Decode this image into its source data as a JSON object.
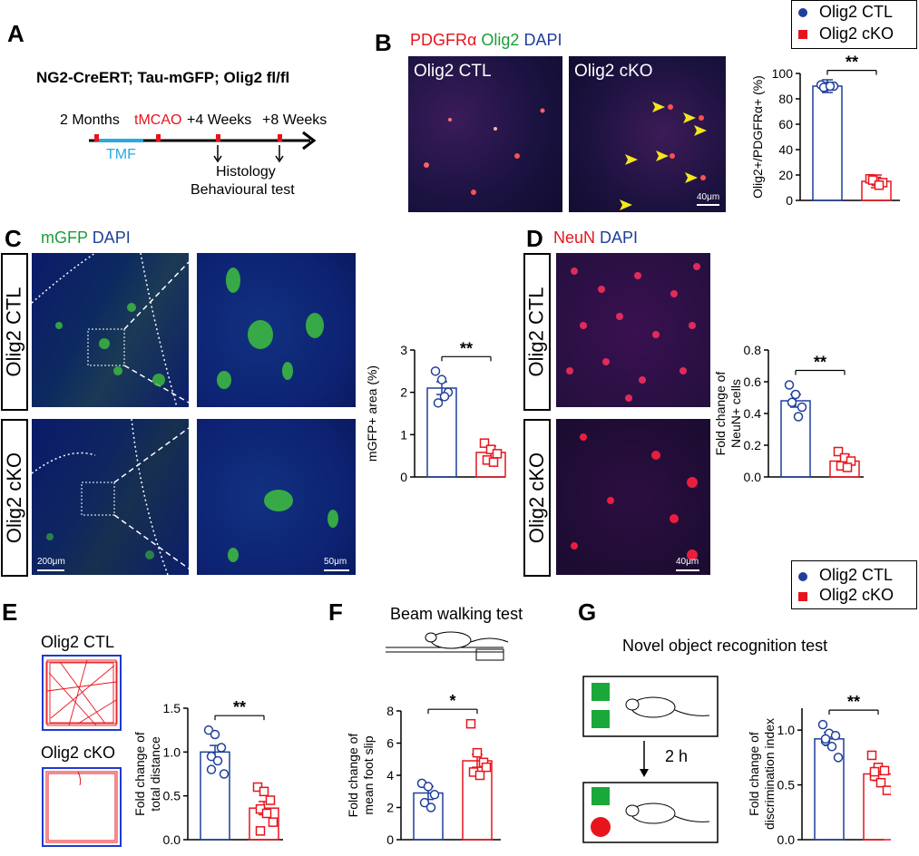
{
  "panels": {
    "A": "A",
    "B": "B",
    "C": "C",
    "D": "D",
    "E": "E",
    "F": "F",
    "G": "G"
  },
  "panel_a": {
    "title": "NG2-CreERT; Tau-mGFP; Olig2 fl/fl",
    "t0": "2 Months",
    "t1": "tMCAO",
    "t2": "+4 Weeks",
    "t3": "+8 Weeks",
    "tmf": "TMF",
    "histology": "Histology",
    "behaviour": "Behavioural test"
  },
  "panel_b": {
    "stain_pdgfra": "PDGFRα",
    "stain_olig2": "Olig2",
    "stain_dapi": "DAPI",
    "img_ctl": "Olig2 CTL",
    "img_cko": "Olig2 cKO",
    "scale": "40μm"
  },
  "panel_c": {
    "stain_mgfp": "mGFP",
    "stain_dapi": "DAPI",
    "scale1": "200μm",
    "scale2": "50μm"
  },
  "panel_d": {
    "stain_neun": "NeuN",
    "stain_dapi": "DAPI",
    "scale": "40μm"
  },
  "row_labels": {
    "ctl": "Olig2 CTL",
    "cko": "Olig2 cKO"
  },
  "legend": {
    "ctl": "Olig2 CTL",
    "cko": "Olig2 cKO",
    "ctl_color": "#1f3f9a",
    "cko_color": "#e8141c"
  },
  "panel_e": {
    "ctl_title": "Olig2 CTL",
    "cko_title": "Olig2 cKO"
  },
  "panel_f": {
    "title": "Beam walking test"
  },
  "panel_g": {
    "title": "Novel object recognition test",
    "delay": "2 h"
  },
  "chart_data": [
    {
      "id": "B",
      "type": "bar",
      "ylabel": "Olig2+/PDGFRα+ (%)",
      "ylim": [
        0,
        100
      ],
      "yticks": [
        "0",
        "20",
        "40",
        "60",
        "80",
        "100"
      ],
      "series": [
        {
          "name": "Olig2 CTL",
          "values": [
            90
          ],
          "points": [
            91,
            90,
            90,
            89,
            90
          ]
        },
        {
          "name": "Olig2 cKO",
          "values": [
            15
          ],
          "points": [
            17,
            15,
            14,
            16,
            12
          ]
        }
      ],
      "significance": "**"
    },
    {
      "id": "C",
      "type": "bar",
      "ylabel": "mGFP+ area (%)",
      "ylim": [
        0,
        3
      ],
      "yticks": [
        "0",
        "1",
        "2",
        "3"
      ],
      "series": [
        {
          "name": "Olig2 CTL",
          "values": [
            2.1
          ],
          "points": [
            2.5,
            2.3,
            2.0,
            1.75,
            1.9
          ]
        },
        {
          "name": "Olig2 cKO",
          "values": [
            0.58
          ],
          "points": [
            0.8,
            0.65,
            0.55,
            0.4,
            0.35
          ]
        }
      ],
      "significance": "**"
    },
    {
      "id": "D",
      "type": "bar",
      "ylabel": "Fold change of NeuN+ cells",
      "ylim": [
        0,
        0.8
      ],
      "yticks": [
        "0.0",
        "0.2",
        "0.4",
        "0.6",
        "0.8"
      ],
      "series": [
        {
          "name": "Olig2 CTL",
          "values": [
            0.48
          ],
          "points": [
            0.58,
            0.52,
            0.44,
            0.47,
            0.38
          ]
        },
        {
          "name": "Olig2 cKO",
          "values": [
            0.1
          ],
          "points": [
            0.16,
            0.12,
            0.1,
            0.07,
            0.06
          ]
        }
      ],
      "significance": "**"
    },
    {
      "id": "E",
      "type": "bar",
      "ylabel": "Fold change of total distance",
      "ylim": [
        0,
        1.5
      ],
      "yticks": [
        "0.0",
        "0.5",
        "1.0",
        "1.5"
      ],
      "series": [
        {
          "name": "Olig2 CTL",
          "values": [
            1.0
          ],
          "points": [
            1.25,
            1.2,
            1.05,
            0.95,
            0.9,
            0.75,
            0.8
          ]
        },
        {
          "name": "Olig2 cKO",
          "values": [
            0.36
          ],
          "points": [
            0.6,
            0.55,
            0.45,
            0.35,
            0.3,
            0.2,
            0.1
          ]
        }
      ],
      "significance": "**"
    },
    {
      "id": "F",
      "type": "bar",
      "ylabel": "Fold change of mean foot slip",
      "ylim": [
        0,
        8
      ],
      "yticks": [
        "0",
        "2",
        "4",
        "6",
        "8"
      ],
      "series": [
        {
          "name": "Olig2 CTL",
          "values": [
            2.9
          ],
          "points": [
            3.5,
            3.3,
            2.8,
            2.3,
            2.0
          ]
        },
        {
          "name": "Olig2 cKO",
          "values": [
            4.9
          ],
          "points": [
            7.2,
            5.4,
            4.8,
            4.2,
            4.0,
            4.5
          ]
        }
      ],
      "significance": "*"
    },
    {
      "id": "G",
      "type": "bar",
      "ylabel": "Fold change of discrimination index",
      "ylim": [
        0,
        1.2
      ],
      "yticks": [
        "0.0",
        "0.5",
        "1.0"
      ],
      "series": [
        {
          "name": "Olig2 CTL",
          "values": [
            0.92
          ],
          "points": [
            1.05,
            0.97,
            0.95,
            0.9,
            0.85,
            0.75,
            0.92
          ]
        },
        {
          "name": "Olig2 cKO",
          "values": [
            0.6
          ],
          "points": [
            0.77,
            0.66,
            0.63,
            0.58,
            0.52,
            0.45,
            0.62
          ]
        }
      ],
      "significance": "**"
    }
  ]
}
